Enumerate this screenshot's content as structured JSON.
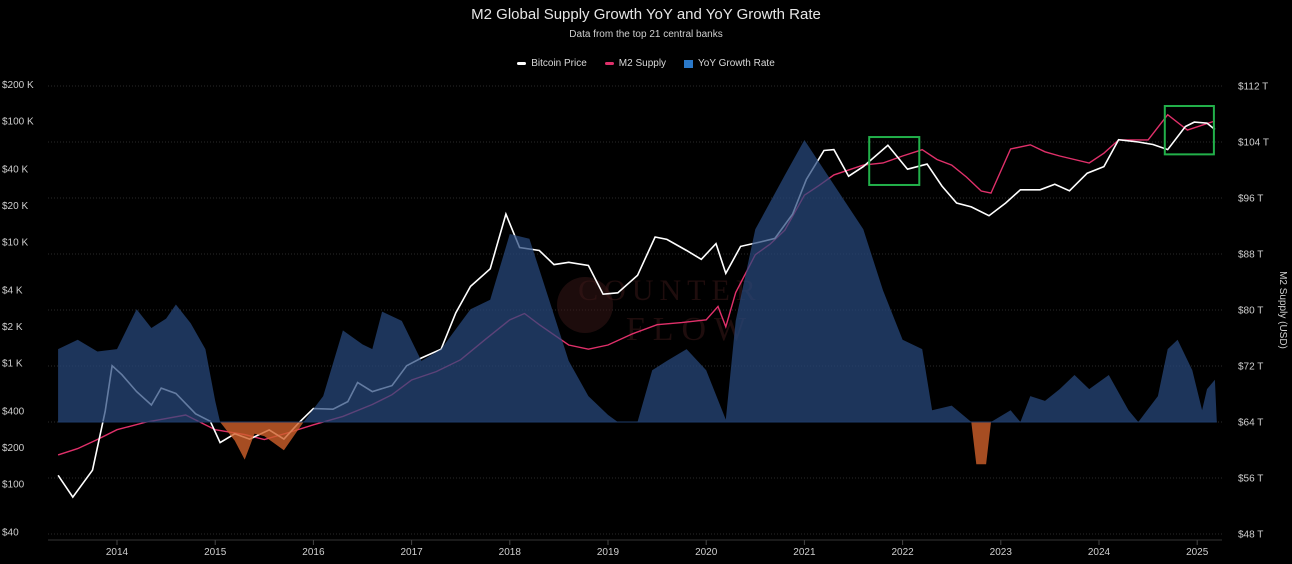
{
  "chart_data": {
    "type": "line",
    "title": "M2 Global Supply Growth YoY and YoY Growth Rate",
    "subtitle": "Data from the top 21 central banks",
    "watermark": "COUNTERFLOW",
    "legend": {
      "placement": "top-center",
      "entries": [
        {
          "name": "Bitcoin Price",
          "color": "#ffffff"
        },
        {
          "name": "M2 Supply",
          "color": "#e0306a"
        },
        {
          "name": "YoY Growth Rate",
          "color": "#2a78c8"
        }
      ]
    },
    "grid": true,
    "x_axis": {
      "ticks": [
        {
          "label": "2014",
          "value": 2014
        },
        {
          "label": "2015",
          "value": 2015
        },
        {
          "label": "2016",
          "value": 2016
        },
        {
          "label": "2017",
          "value": 2017
        },
        {
          "label": "2018",
          "value": 2018
        },
        {
          "label": "2019",
          "value": 2019
        },
        {
          "label": "2020",
          "value": 2020
        },
        {
          "label": "2021",
          "value": 2021
        },
        {
          "label": "2022",
          "value": 2022
        },
        {
          "label": "2023",
          "value": 2023
        },
        {
          "label": "2024",
          "value": 2024
        },
        {
          "label": "2025",
          "value": 2025
        }
      ],
      "xlim": [
        2013.4,
        2025.2
      ]
    },
    "left_axis": {
      "scale": "log",
      "ylim": [
        40,
        200000
      ],
      "ticks": [
        {
          "label": "$200 K",
          "value": 200000
        },
        {
          "label": "$100 K",
          "value": 100000
        },
        {
          "label": "$40 K",
          "value": 40000
        },
        {
          "label": "$20 K",
          "value": 20000
        },
        {
          "label": "$10 K",
          "value": 10000
        },
        {
          "label": "$4 K",
          "value": 4000
        },
        {
          "label": "$2 K",
          "value": 2000
        },
        {
          "label": "$1 K",
          "value": 1000
        },
        {
          "label": "$400",
          "value": 400
        },
        {
          "label": "$200",
          "value": 200
        },
        {
          "label": "$100",
          "value": 100
        },
        {
          "label": "$40",
          "value": 40
        }
      ]
    },
    "right_axis": {
      "title": "M2 Supply (USD)",
      "scale": "linear",
      "ylim": [
        48,
        112
      ],
      "ticks": [
        {
          "label": "$112 T",
          "value": 112
        },
        {
          "label": "$104 T",
          "value": 104
        },
        {
          "label": "$96 T",
          "value": 96
        },
        {
          "label": "$88 T",
          "value": 88
        },
        {
          "label": "$80 T",
          "value": 80
        },
        {
          "label": "$72 T",
          "value": 72
        },
        {
          "label": "$64 T",
          "value": 64
        },
        {
          "label": "$56 T",
          "value": 56
        },
        {
          "label": "$48 T",
          "value": 48
        }
      ]
    },
    "series": [
      {
        "name": "Bitcoin Price",
        "axis": "left",
        "color": "#ffffff",
        "points": [
          [
            2013.4,
            118
          ],
          [
            2013.55,
            78
          ],
          [
            2013.75,
            130
          ],
          [
            2013.88,
            400
          ],
          [
            2013.95,
            950
          ],
          [
            2014.05,
            800
          ],
          [
            2014.2,
            580
          ],
          [
            2014.35,
            450
          ],
          [
            2014.45,
            620
          ],
          [
            2014.6,
            560
          ],
          [
            2014.8,
            380
          ],
          [
            2014.95,
            330
          ],
          [
            2015.05,
            220
          ],
          [
            2015.2,
            260
          ],
          [
            2015.35,
            235
          ],
          [
            2015.55,
            280
          ],
          [
            2015.7,
            235
          ],
          [
            2015.85,
            320
          ],
          [
            2016.0,
            420
          ],
          [
            2016.2,
            415
          ],
          [
            2016.35,
            480
          ],
          [
            2016.45,
            690
          ],
          [
            2016.6,
            580
          ],
          [
            2016.8,
            650
          ],
          [
            2016.95,
            950
          ],
          [
            2017.1,
            1100
          ],
          [
            2017.3,
            1300
          ],
          [
            2017.45,
            2600
          ],
          [
            2017.6,
            4300
          ],
          [
            2017.8,
            6000
          ],
          [
            2017.96,
            17000
          ],
          [
            2018.1,
            9000
          ],
          [
            2018.3,
            8500
          ],
          [
            2018.45,
            6500
          ],
          [
            2018.6,
            6800
          ],
          [
            2018.8,
            6400
          ],
          [
            2018.95,
            3700
          ],
          [
            2019.1,
            3800
          ],
          [
            2019.3,
            5300
          ],
          [
            2019.48,
            11000
          ],
          [
            2019.6,
            10500
          ],
          [
            2019.8,
            8500
          ],
          [
            2019.95,
            7200
          ],
          [
            2020.1,
            9700
          ],
          [
            2020.2,
            5500
          ],
          [
            2020.35,
            9200
          ],
          [
            2020.55,
            10000
          ],
          [
            2020.7,
            10700
          ],
          [
            2020.88,
            17000
          ],
          [
            2021.02,
            33000
          ],
          [
            2021.2,
            57000
          ],
          [
            2021.3,
            58000
          ],
          [
            2021.45,
            35000
          ],
          [
            2021.6,
            42000
          ],
          [
            2021.85,
            63000
          ],
          [
            2022.05,
            40000
          ],
          [
            2022.25,
            44000
          ],
          [
            2022.4,
            29000
          ],
          [
            2022.55,
            21000
          ],
          [
            2022.7,
            19500
          ],
          [
            2022.88,
            16500
          ],
          [
            2023.05,
            21000
          ],
          [
            2023.2,
            27000
          ],
          [
            2023.4,
            27000
          ],
          [
            2023.55,
            30000
          ],
          [
            2023.7,
            26500
          ],
          [
            2023.88,
            37000
          ],
          [
            2024.05,
            42000
          ],
          [
            2024.2,
            70000
          ],
          [
            2024.4,
            67000
          ],
          [
            2024.55,
            64000
          ],
          [
            2024.7,
            58000
          ],
          [
            2024.88,
            90000
          ],
          [
            2024.97,
            98000
          ],
          [
            2025.1,
            96000
          ],
          [
            2025.18,
            85000
          ]
        ]
      },
      {
        "name": "M2 Supply",
        "axis": "right",
        "color": "#e0306a",
        "points": [
          [
            2013.4,
            59.3
          ],
          [
            2013.6,
            60.2
          ],
          [
            2013.8,
            61.5
          ],
          [
            2014.0,
            62.9
          ],
          [
            2014.3,
            64.0
          ],
          [
            2014.7,
            65.0
          ],
          [
            2015.0,
            62.9
          ],
          [
            2015.3,
            62.2
          ],
          [
            2015.5,
            61.5
          ],
          [
            2015.75,
            62.5
          ],
          [
            2016.0,
            63.6
          ],
          [
            2016.3,
            64.8
          ],
          [
            2016.6,
            66.5
          ],
          [
            2016.8,
            67.9
          ],
          [
            2017.0,
            70.0
          ],
          [
            2017.25,
            71.2
          ],
          [
            2017.5,
            72.9
          ],
          [
            2017.75,
            75.8
          ],
          [
            2018.0,
            78.6
          ],
          [
            2018.15,
            79.5
          ],
          [
            2018.3,
            77.9
          ],
          [
            2018.6,
            75.0
          ],
          [
            2018.8,
            74.4
          ],
          [
            2019.0,
            75.0
          ],
          [
            2019.25,
            76.6
          ],
          [
            2019.5,
            77.9
          ],
          [
            2019.75,
            78.2
          ],
          [
            2020.0,
            78.6
          ],
          [
            2020.12,
            80.5
          ],
          [
            2020.2,
            77.6
          ],
          [
            2020.3,
            82.5
          ],
          [
            2020.5,
            87.9
          ],
          [
            2020.65,
            89.4
          ],
          [
            2020.8,
            91.4
          ],
          [
            2021.0,
            96.4
          ],
          [
            2021.15,
            97.8
          ],
          [
            2021.3,
            99.3
          ],
          [
            2021.6,
            100.7
          ],
          [
            2021.8,
            101.0
          ],
          [
            2022.0,
            102.0
          ],
          [
            2022.2,
            102.9
          ],
          [
            2022.35,
            101.5
          ],
          [
            2022.5,
            100.7
          ],
          [
            2022.65,
            99.0
          ],
          [
            2022.8,
            97.0
          ],
          [
            2022.9,
            96.7
          ],
          [
            2023.1,
            103.0
          ],
          [
            2023.3,
            103.6
          ],
          [
            2023.45,
            102.6
          ],
          [
            2023.6,
            102.0
          ],
          [
            2023.9,
            101.0
          ],
          [
            2024.05,
            102.4
          ],
          [
            2024.2,
            104.3
          ],
          [
            2024.5,
            104.3
          ],
          [
            2024.7,
            107.9
          ],
          [
            2024.9,
            105.7
          ],
          [
            2025.05,
            106.4
          ],
          [
            2025.18,
            107.0
          ]
        ]
      },
      {
        "name": "YoY Growth Rate",
        "axis": "hidden",
        "unit": "%",
        "color_positive": "#2a78c8",
        "color_negative": "#d0602a",
        "points": [
          [
            2013.4,
            3.1
          ],
          [
            2013.6,
            3.5
          ],
          [
            2013.8,
            3.0
          ],
          [
            2014.0,
            3.1
          ],
          [
            2014.2,
            4.8
          ],
          [
            2014.35,
            4.0
          ],
          [
            2014.5,
            4.4
          ],
          [
            2014.6,
            5.0
          ],
          [
            2014.75,
            4.2
          ],
          [
            2014.9,
            3.1
          ],
          [
            2015.0,
            0.9
          ],
          [
            2015.05,
            0
          ],
          [
            2015.2,
            -0.8
          ],
          [
            2015.3,
            -1.6
          ],
          [
            2015.4,
            -0.5
          ],
          [
            2015.5,
            -0.6
          ],
          [
            2015.7,
            -1.2
          ],
          [
            2015.9,
            0
          ],
          [
            2016.1,
            1.1
          ],
          [
            2016.3,
            3.9
          ],
          [
            2016.5,
            3.3
          ],
          [
            2016.6,
            3.1
          ],
          [
            2016.7,
            4.7
          ],
          [
            2016.9,
            4.3
          ],
          [
            2017.1,
            2.6
          ],
          [
            2017.3,
            3.1
          ],
          [
            2017.6,
            4.8
          ],
          [
            2017.8,
            5.2
          ],
          [
            2018.0,
            8.0
          ],
          [
            2018.2,
            7.8
          ],
          [
            2018.4,
            5.2
          ],
          [
            2018.6,
            2.6
          ],
          [
            2018.8,
            1.1
          ],
          [
            2019.0,
            0.3
          ],
          [
            2019.1,
            0
          ],
          [
            2019.3,
            0
          ],
          [
            2019.45,
            2.2
          ],
          [
            2019.6,
            2.6
          ],
          [
            2019.8,
            3.1
          ],
          [
            2020.0,
            2.2
          ],
          [
            2020.2,
            0.1
          ],
          [
            2020.3,
            4.3
          ],
          [
            2020.5,
            8.2
          ],
          [
            2020.8,
            10.5
          ],
          [
            2021.0,
            12.0
          ],
          [
            2021.3,
            10.1
          ],
          [
            2021.6,
            8.2
          ],
          [
            2021.8,
            5.6
          ],
          [
            2022.0,
            3.5
          ],
          [
            2022.2,
            3.1
          ],
          [
            2022.3,
            0.5
          ],
          [
            2022.5,
            0.7
          ],
          [
            2022.7,
            0
          ],
          [
            2022.75,
            -1.8
          ],
          [
            2022.85,
            -1.8
          ],
          [
            2022.9,
            0
          ],
          [
            2023.1,
            0.5
          ],
          [
            2023.2,
            0
          ],
          [
            2023.3,
            1.1
          ],
          [
            2023.45,
            0.9
          ],
          [
            2023.6,
            1.4
          ],
          [
            2023.75,
            2.0
          ],
          [
            2023.9,
            1.4
          ],
          [
            2024.1,
            2.0
          ],
          [
            2024.3,
            0.5
          ],
          [
            2024.4,
            0
          ],
          [
            2024.6,
            1.1
          ],
          [
            2024.7,
            3.1
          ],
          [
            2024.8,
            3.5
          ],
          [
            2024.95,
            2.2
          ],
          [
            2025.05,
            0.5
          ],
          [
            2025.1,
            1.4
          ],
          [
            2025.18,
            1.8
          ],
          [
            2025.2,
            0
          ]
        ]
      }
    ],
    "highlights": [
      {
        "color": "#22b04a",
        "x_range": [
          2021.66,
          2022.17
        ],
        "y_range_left": [
          29600,
          73700
        ]
      },
      {
        "color": "#22b04a",
        "x_range": [
          2024.67,
          2025.17
        ],
        "y_range_left": [
          53000,
          133000
        ]
      }
    ]
  }
}
